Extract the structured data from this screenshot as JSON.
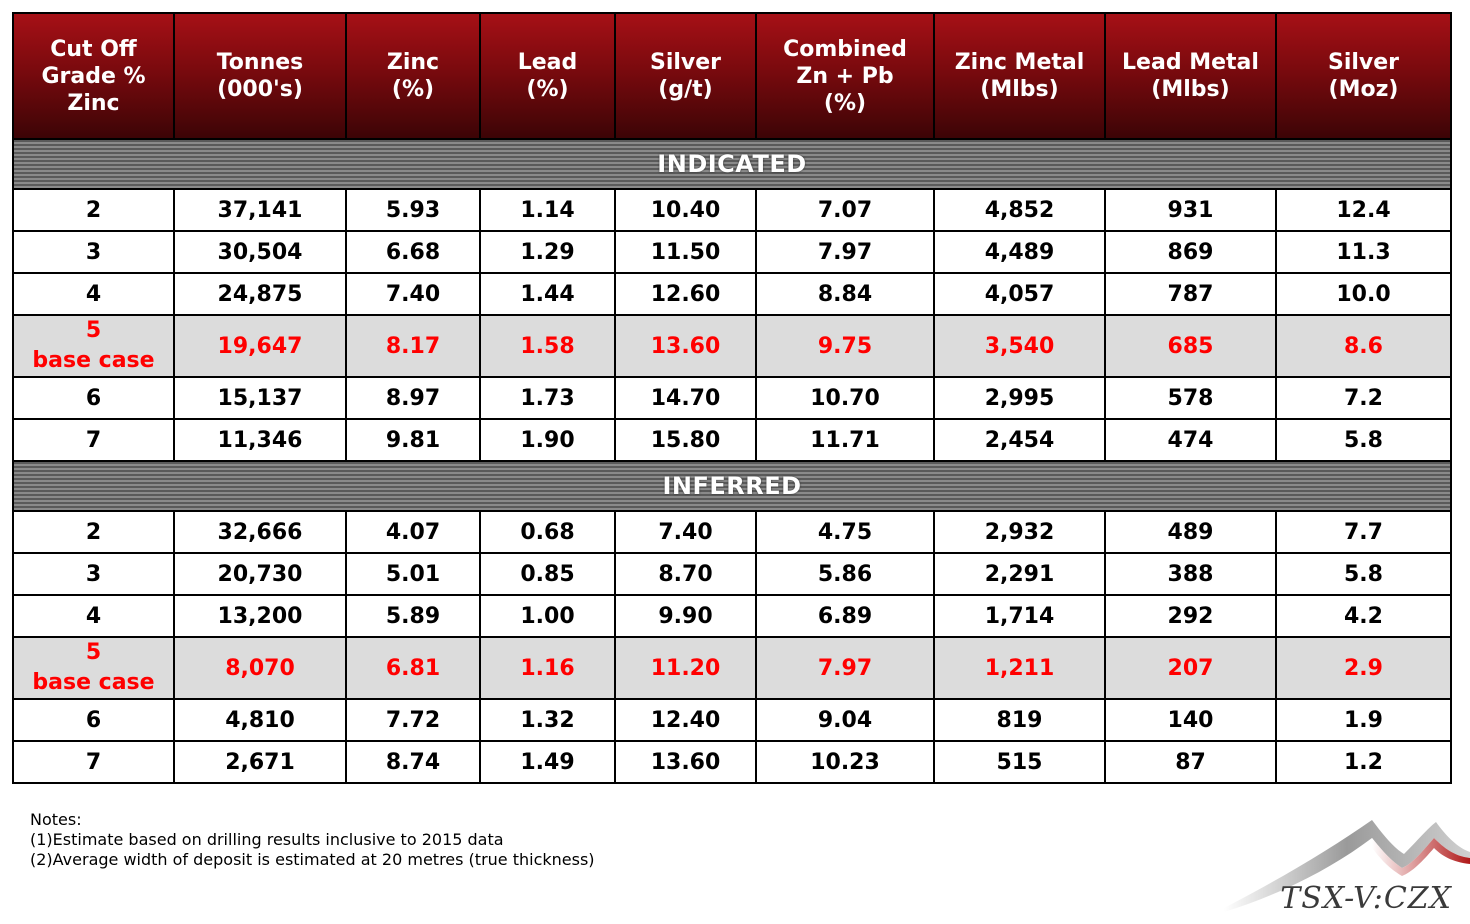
{
  "table": {
    "headers": [
      "Cut Off\nGrade %\nZinc",
      "Tonnes\n(000's)",
      "Zinc\n(%)",
      "Lead\n(%)",
      "Silver\n(g/t)",
      "Combined\nZn + Pb\n(%)",
      "Zinc Metal\n(Mlbs)",
      "Lead Metal\n(Mlbs)",
      "Silver\n(Moz)"
    ],
    "sections": [
      {
        "title": "INDICATED",
        "rows": [
          {
            "cutoff": "2",
            "cells": [
              "37,141",
              "5.93",
              "1.14",
              "10.40",
              "7.07",
              "4,852",
              "931",
              "12.4"
            ]
          },
          {
            "cutoff": "3",
            "cells": [
              "30,504",
              "6.68",
              "1.29",
              "11.50",
              "7.97",
              "4,489",
              "869",
              "11.3"
            ]
          },
          {
            "cutoff": "4",
            "cells": [
              "24,875",
              "7.40",
              "1.44",
              "12.60",
              "8.84",
              "4,057",
              "787",
              "10.0"
            ]
          },
          {
            "cutoff": "5",
            "note": "base case",
            "base": true,
            "cells": [
              "19,647",
              "8.17",
              "1.58",
              "13.60",
              "9.75",
              "3,540",
              "685",
              "8.6"
            ]
          },
          {
            "cutoff": "6",
            "cells": [
              "15,137",
              "8.97",
              "1.73",
              "14.70",
              "10.70",
              "2,995",
              "578",
              "7.2"
            ]
          },
          {
            "cutoff": "7",
            "cells": [
              "11,346",
              "9.81",
              "1.90",
              "15.80",
              "11.71",
              "2,454",
              "474",
              "5.8"
            ]
          }
        ]
      },
      {
        "title": "INFERRED",
        "rows": [
          {
            "cutoff": "2",
            "cells": [
              "32,666",
              "4.07",
              "0.68",
              "7.40",
              "4.75",
              "2,932",
              "489",
              "7.7"
            ]
          },
          {
            "cutoff": "3",
            "cells": [
              "20,730",
              "5.01",
              "0.85",
              "8.70",
              "5.86",
              "2,291",
              "388",
              "5.8"
            ]
          },
          {
            "cutoff": "4",
            "cells": [
              "13,200",
              "5.89",
              "1.00",
              "9.90",
              "6.89",
              "1,714",
              "292",
              "4.2"
            ]
          },
          {
            "cutoff": "5",
            "note": "base case",
            "base": true,
            "cells": [
              "8,070",
              "6.81",
              "1.16",
              "11.20",
              "7.97",
              "1,211",
              "207",
              "2.9"
            ]
          },
          {
            "cutoff": "6",
            "cells": [
              "4,810",
              "7.72",
              "1.32",
              "12.40",
              "9.04",
              "819",
              "140",
              "1.9"
            ]
          },
          {
            "cutoff": "7",
            "cells": [
              "2,671",
              "8.74",
              "1.49",
              "13.60",
              "10.23",
              "515",
              "87",
              "1.2"
            ]
          }
        ]
      }
    ]
  },
  "notes": {
    "title": "Notes:",
    "items": [
      "(1)Estimate based on drilling results inclusive to 2015 data",
      "(2)Average width of deposit is estimated at 20 metres (true thickness)"
    ]
  },
  "logo": {
    "text": "TSX-V:CZX",
    "icon": "mountain-swoosh-logo"
  },
  "colors": {
    "header": "#7a0a0e",
    "base_case_text": "#ff0000",
    "base_case_bg": "#dcdcdc"
  }
}
